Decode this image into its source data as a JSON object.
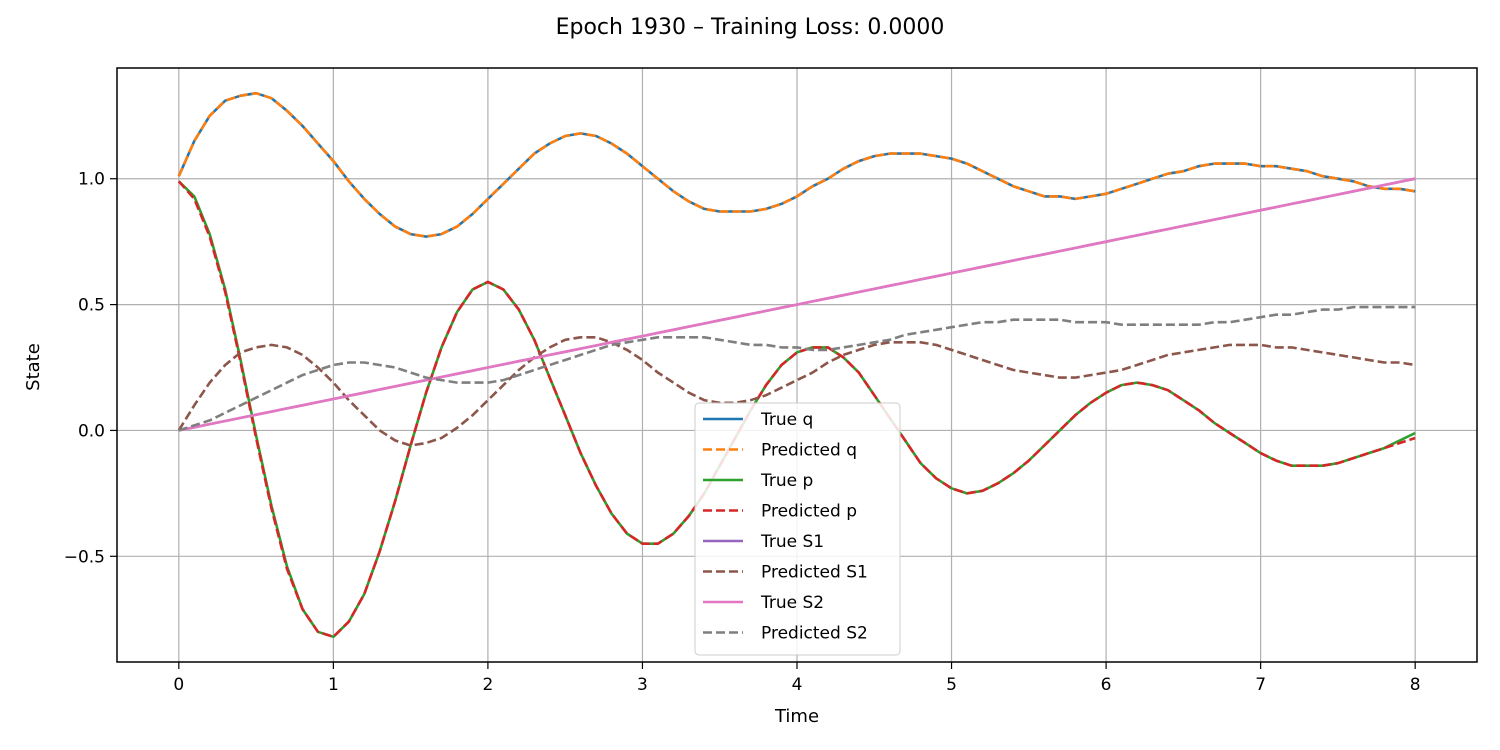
{
  "chart_data": {
    "type": "line",
    "title": "Epoch 1930 – Training Loss: 0.0000",
    "xlabel": "Time",
    "ylabel": "State",
    "xlim": [
      -0.4,
      8.4
    ],
    "ylim": [
      -0.92,
      1.44
    ],
    "xticks": [
      0,
      1,
      2,
      3,
      4,
      5,
      6,
      7,
      8
    ],
    "yticks": [
      -0.5,
      0.0,
      0.5,
      1.0
    ],
    "xtick_labels": [
      "0",
      "1",
      "2",
      "3",
      "4",
      "5",
      "6",
      "7",
      "8"
    ],
    "ytick_labels": [
      "−0.5",
      "0.0",
      "0.5",
      "1.0"
    ],
    "grid": true,
    "legend_position": "lower-center",
    "x": [
      0,
      0.1,
      0.2,
      0.3,
      0.4,
      0.5,
      0.6,
      0.7,
      0.8,
      0.9,
      1.0,
      1.1,
      1.2,
      1.3,
      1.4,
      1.5,
      1.6,
      1.7,
      1.8,
      1.9,
      2.0,
      2.1,
      2.2,
      2.3,
      2.4,
      2.5,
      2.6,
      2.7,
      2.8,
      2.9,
      3.0,
      3.1,
      3.2,
      3.3,
      3.4,
      3.5,
      3.6,
      3.7,
      3.8,
      3.9,
      4.0,
      4.1,
      4.2,
      4.3,
      4.4,
      4.5,
      4.6,
      4.7,
      4.8,
      4.9,
      5.0,
      5.1,
      5.2,
      5.3,
      5.4,
      5.5,
      5.6,
      5.7,
      5.8,
      5.9,
      6.0,
      6.1,
      6.2,
      6.3,
      6.4,
      6.5,
      6.6,
      6.7,
      6.8,
      6.9,
      7.0,
      7.1,
      7.2,
      7.3,
      7.4,
      7.5,
      7.6,
      7.7,
      7.8,
      7.9,
      8.0
    ],
    "series": [
      {
        "name": "True q",
        "color": "#1f77b4",
        "dash": false,
        "values": [
          1.01,
          1.15,
          1.25,
          1.31,
          1.33,
          1.34,
          1.32,
          1.27,
          1.21,
          1.14,
          1.07,
          0.99,
          0.92,
          0.86,
          0.81,
          0.78,
          0.77,
          0.78,
          0.81,
          0.86,
          0.92,
          0.98,
          1.04,
          1.1,
          1.14,
          1.17,
          1.18,
          1.17,
          1.14,
          1.1,
          1.05,
          1.0,
          0.95,
          0.91,
          0.88,
          0.87,
          0.87,
          0.87,
          0.88,
          0.9,
          0.93,
          0.97,
          1.0,
          1.04,
          1.07,
          1.09,
          1.1,
          1.1,
          1.1,
          1.09,
          1.08,
          1.06,
          1.03,
          1.0,
          0.97,
          0.95,
          0.93,
          0.93,
          0.92,
          0.93,
          0.94,
          0.96,
          0.98,
          1.0,
          1.02,
          1.03,
          1.05,
          1.06,
          1.06,
          1.06,
          1.05,
          1.05,
          1.04,
          1.03,
          1.01,
          1.0,
          0.99,
          0.97,
          0.96,
          0.96,
          0.95
        ]
      },
      {
        "name": "Predicted q",
        "color": "#ff7f0e",
        "dash": true,
        "values": [
          1.01,
          1.15,
          1.25,
          1.31,
          1.33,
          1.34,
          1.32,
          1.27,
          1.21,
          1.14,
          1.07,
          0.99,
          0.92,
          0.86,
          0.81,
          0.78,
          0.77,
          0.78,
          0.81,
          0.86,
          0.92,
          0.98,
          1.04,
          1.1,
          1.14,
          1.17,
          1.18,
          1.17,
          1.14,
          1.1,
          1.05,
          1.0,
          0.95,
          0.91,
          0.88,
          0.87,
          0.87,
          0.87,
          0.88,
          0.9,
          0.93,
          0.97,
          1.0,
          1.04,
          1.07,
          1.09,
          1.1,
          1.1,
          1.1,
          1.09,
          1.08,
          1.06,
          1.03,
          1.0,
          0.97,
          0.95,
          0.93,
          0.93,
          0.92,
          0.93,
          0.94,
          0.96,
          0.98,
          1.0,
          1.02,
          1.03,
          1.05,
          1.06,
          1.06,
          1.06,
          1.05,
          1.05,
          1.04,
          1.03,
          1.01,
          1.0,
          0.99,
          0.97,
          0.96,
          0.96,
          0.95
        ]
      },
      {
        "name": "True p",
        "color": "#2ca02c",
        "dash": false,
        "values": [
          0.99,
          0.93,
          0.78,
          0.56,
          0.28,
          -0.02,
          -0.3,
          -0.54,
          -0.71,
          -0.8,
          -0.82,
          -0.76,
          -0.65,
          -0.48,
          -0.28,
          -0.06,
          0.15,
          0.33,
          0.47,
          0.56,
          0.59,
          0.56,
          0.48,
          0.36,
          0.21,
          0.06,
          -0.09,
          -0.22,
          -0.33,
          -0.41,
          -0.45,
          -0.45,
          -0.41,
          -0.34,
          -0.25,
          -0.14,
          -0.03,
          0.08,
          0.18,
          0.26,
          0.31,
          0.33,
          0.33,
          0.29,
          0.23,
          0.14,
          0.05,
          -0.04,
          -0.13,
          -0.19,
          -0.23,
          -0.25,
          -0.24,
          -0.21,
          -0.17,
          -0.12,
          -0.06,
          0.0,
          0.06,
          0.11,
          0.15,
          0.18,
          0.19,
          0.18,
          0.16,
          0.12,
          0.08,
          0.03,
          -0.01,
          -0.05,
          -0.09,
          -0.12,
          -0.14,
          -0.14,
          -0.14,
          -0.13,
          -0.11,
          -0.09,
          -0.07,
          -0.04,
          -0.01
        ]
      },
      {
        "name": "Predicted p",
        "color": "#d62728",
        "dash": true,
        "values": [
          0.99,
          0.92,
          0.77,
          0.55,
          0.27,
          -0.03,
          -0.31,
          -0.55,
          -0.71,
          -0.8,
          -0.82,
          -0.76,
          -0.65,
          -0.48,
          -0.28,
          -0.06,
          0.15,
          0.33,
          0.47,
          0.56,
          0.59,
          0.56,
          0.48,
          0.36,
          0.21,
          0.06,
          -0.09,
          -0.22,
          -0.33,
          -0.41,
          -0.45,
          -0.45,
          -0.41,
          -0.34,
          -0.25,
          -0.14,
          -0.03,
          0.08,
          0.18,
          0.26,
          0.31,
          0.33,
          0.33,
          0.29,
          0.23,
          0.14,
          0.05,
          -0.04,
          -0.13,
          -0.19,
          -0.23,
          -0.25,
          -0.24,
          -0.21,
          -0.17,
          -0.12,
          -0.06,
          0.0,
          0.06,
          0.11,
          0.15,
          0.18,
          0.19,
          0.18,
          0.16,
          0.12,
          0.08,
          0.03,
          -0.01,
          -0.05,
          -0.09,
          -0.12,
          -0.14,
          -0.14,
          -0.14,
          -0.13,
          -0.11,
          -0.09,
          -0.07,
          -0.05,
          -0.03
        ]
      },
      {
        "name": "True S1",
        "color": "#9467bd",
        "dash": false,
        "values": [
          0.0,
          0.0125,
          0.025,
          0.0375,
          0.05,
          0.0625,
          0.075,
          0.0875,
          0.1,
          0.1125,
          0.125,
          0.1375,
          0.15,
          0.1625,
          0.175,
          0.1875,
          0.2,
          0.2125,
          0.225,
          0.2375,
          0.25,
          0.2625,
          0.275,
          0.2875,
          0.3,
          0.3125,
          0.325,
          0.3375,
          0.35,
          0.3625,
          0.375,
          0.3875,
          0.4,
          0.4125,
          0.425,
          0.4375,
          0.45,
          0.4625,
          0.475,
          0.4875,
          0.5,
          0.5125,
          0.525,
          0.5375,
          0.55,
          0.5625,
          0.575,
          0.5875,
          0.6,
          0.6125,
          0.625,
          0.6375,
          0.65,
          0.6625,
          0.675,
          0.6875,
          0.7,
          0.7125,
          0.725,
          0.7375,
          0.75,
          0.7625,
          0.775,
          0.7875,
          0.8,
          0.8125,
          0.825,
          0.8375,
          0.85,
          0.8625,
          0.875,
          0.8875,
          0.9,
          0.9125,
          0.925,
          0.9375,
          0.95,
          0.9625,
          0.975,
          0.9875,
          1.0
        ]
      },
      {
        "name": "Predicted S1",
        "color": "#8c564b",
        "dash": true,
        "values": [
          0.0,
          0.1,
          0.19,
          0.26,
          0.31,
          0.33,
          0.34,
          0.33,
          0.3,
          0.25,
          0.19,
          0.12,
          0.06,
          0.0,
          -0.04,
          -0.06,
          -0.05,
          -0.03,
          0.01,
          0.06,
          0.12,
          0.18,
          0.24,
          0.29,
          0.33,
          0.36,
          0.37,
          0.37,
          0.35,
          0.32,
          0.28,
          0.23,
          0.19,
          0.15,
          0.12,
          0.11,
          0.11,
          0.12,
          0.14,
          0.17,
          0.2,
          0.23,
          0.27,
          0.3,
          0.32,
          0.34,
          0.35,
          0.35,
          0.35,
          0.34,
          0.32,
          0.3,
          0.28,
          0.26,
          0.24,
          0.23,
          0.22,
          0.21,
          0.21,
          0.22,
          0.23,
          0.24,
          0.26,
          0.28,
          0.3,
          0.31,
          0.32,
          0.33,
          0.34,
          0.34,
          0.34,
          0.33,
          0.33,
          0.32,
          0.31,
          0.3,
          0.29,
          0.28,
          0.27,
          0.27,
          0.26
        ]
      },
      {
        "name": "True S2",
        "color": "#e377c2",
        "dash": false,
        "values": [
          0.0,
          0.0125,
          0.025,
          0.0375,
          0.05,
          0.0625,
          0.075,
          0.0875,
          0.1,
          0.1125,
          0.125,
          0.1375,
          0.15,
          0.1625,
          0.175,
          0.1875,
          0.2,
          0.2125,
          0.225,
          0.2375,
          0.25,
          0.2625,
          0.275,
          0.2875,
          0.3,
          0.3125,
          0.325,
          0.3375,
          0.35,
          0.3625,
          0.375,
          0.3875,
          0.4,
          0.4125,
          0.425,
          0.4375,
          0.45,
          0.4625,
          0.475,
          0.4875,
          0.5,
          0.5125,
          0.525,
          0.5375,
          0.55,
          0.5625,
          0.575,
          0.5875,
          0.6,
          0.6125,
          0.625,
          0.6375,
          0.65,
          0.6625,
          0.675,
          0.6875,
          0.7,
          0.7125,
          0.725,
          0.7375,
          0.75,
          0.7625,
          0.775,
          0.7875,
          0.8,
          0.8125,
          0.825,
          0.8375,
          0.85,
          0.8625,
          0.875,
          0.8875,
          0.9,
          0.9125,
          0.925,
          0.9375,
          0.95,
          0.9625,
          0.975,
          0.9875,
          1.0
        ]
      },
      {
        "name": "Predicted S2",
        "color": "#7f7f7f",
        "dash": true,
        "values": [
          0.0,
          0.02,
          0.04,
          0.07,
          0.1,
          0.13,
          0.16,
          0.19,
          0.22,
          0.24,
          0.26,
          0.27,
          0.27,
          0.26,
          0.25,
          0.23,
          0.21,
          0.2,
          0.19,
          0.19,
          0.19,
          0.2,
          0.22,
          0.24,
          0.26,
          0.28,
          0.3,
          0.32,
          0.34,
          0.35,
          0.36,
          0.37,
          0.37,
          0.37,
          0.37,
          0.36,
          0.35,
          0.34,
          0.34,
          0.33,
          0.33,
          0.32,
          0.32,
          0.33,
          0.34,
          0.35,
          0.36,
          0.38,
          0.39,
          0.4,
          0.41,
          0.42,
          0.43,
          0.43,
          0.44,
          0.44,
          0.44,
          0.44,
          0.43,
          0.43,
          0.43,
          0.42,
          0.42,
          0.42,
          0.42,
          0.42,
          0.42,
          0.43,
          0.43,
          0.44,
          0.45,
          0.46,
          0.46,
          0.47,
          0.48,
          0.48,
          0.49,
          0.49,
          0.49,
          0.49,
          0.49
        ]
      }
    ]
  }
}
